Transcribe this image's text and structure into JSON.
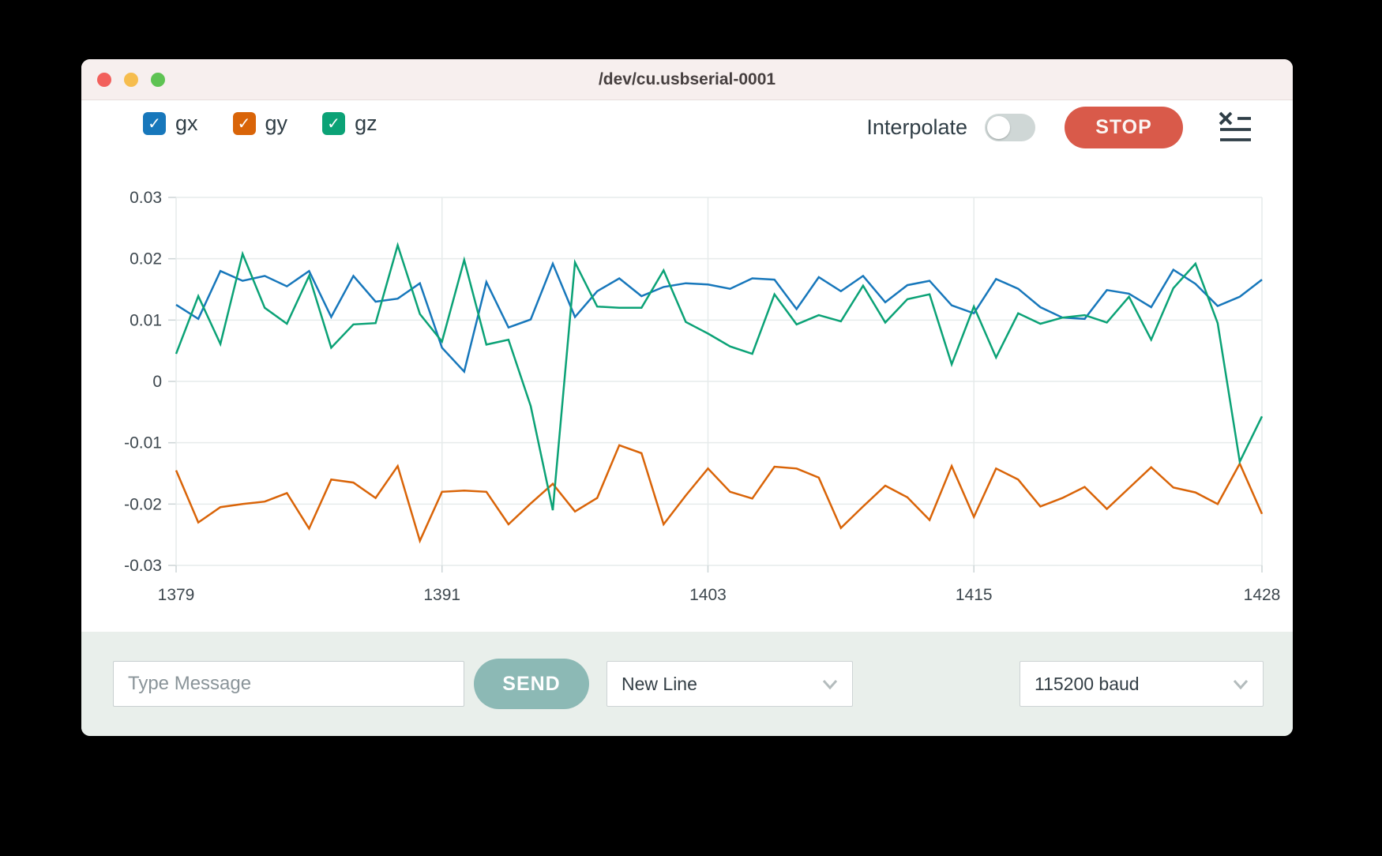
{
  "window": {
    "title": "/dev/cu.usbserial-0001"
  },
  "legend": [
    {
      "id": "gx",
      "label": "gx",
      "color": "#1777bb",
      "checked": true
    },
    {
      "id": "gy",
      "label": "gy",
      "color": "#d96408",
      "checked": true
    },
    {
      "id": "gz",
      "label": "gz",
      "color": "#0ba276",
      "checked": true
    }
  ],
  "toolbar": {
    "interpolate_label": "Interpolate",
    "interpolate_on": false,
    "stop_label": "STOP",
    "clear_icon": "clear-list-icon"
  },
  "chart_data": {
    "type": "line",
    "x": [
      1379,
      1380,
      1381,
      1382,
      1383,
      1384,
      1385,
      1386,
      1387,
      1388,
      1389,
      1390,
      1391,
      1392,
      1393,
      1394,
      1395,
      1396,
      1397,
      1398,
      1399,
      1400,
      1401,
      1402,
      1403,
      1404,
      1405,
      1406,
      1407,
      1408,
      1409,
      1410,
      1411,
      1412,
      1413,
      1414,
      1415,
      1416,
      1417,
      1418,
      1419,
      1420,
      1421,
      1422,
      1423,
      1424,
      1425,
      1426,
      1427,
      1428
    ],
    "series": [
      {
        "name": "gx",
        "color": "#1777bb",
        "values": [
          0.0125,
          0.0102,
          0.018,
          0.0164,
          0.0172,
          0.0155,
          0.018,
          0.0105,
          0.0172,
          0.013,
          0.0135,
          0.016,
          0.0055,
          0.0016,
          0.0162,
          0.0088,
          0.0101,
          0.0192,
          0.0105,
          0.0147,
          0.0168,
          0.0139,
          0.0154,
          0.016,
          0.0158,
          0.0151,
          0.0168,
          0.0166,
          0.0118,
          0.017,
          0.0147,
          0.0172,
          0.0129,
          0.0157,
          0.0164,
          0.0124,
          0.0111,
          0.0167,
          0.0151,
          0.0121,
          0.0104,
          0.0102,
          0.0149,
          0.0143,
          0.0121,
          0.0182,
          0.0159,
          0.0123,
          0.0138,
          0.0166
        ]
      },
      {
        "name": "gy",
        "color": "#d96408",
        "values": [
          -0.0145,
          -0.023,
          -0.0205,
          -0.02,
          -0.0196,
          -0.0182,
          -0.024,
          -0.016,
          -0.0165,
          -0.019,
          -0.0138,
          -0.026,
          -0.018,
          -0.0178,
          -0.018,
          -0.0233,
          -0.0199,
          -0.0167,
          -0.0212,
          -0.019,
          -0.0104,
          -0.0117,
          -0.0233,
          -0.0186,
          -0.0142,
          -0.018,
          -0.0191,
          -0.0139,
          -0.0142,
          -0.0157,
          -0.0239,
          -0.0204,
          -0.017,
          -0.0189,
          -0.0226,
          -0.0138,
          -0.0221,
          -0.0142,
          -0.016,
          -0.0204,
          -0.019,
          -0.0172,
          -0.0208,
          -0.0174,
          -0.014,
          -0.0173,
          -0.0181,
          -0.02,
          -0.0134,
          -0.0216
        ]
      },
      {
        "name": "gz",
        "color": "#0ba276",
        "values": [
          0.0045,
          0.0139,
          0.0061,
          0.0208,
          0.012,
          0.0094,
          0.0172,
          0.0055,
          0.0093,
          0.0095,
          0.0222,
          0.011,
          0.0065,
          0.0198,
          0.006,
          0.0068,
          -0.004,
          -0.021,
          0.0194,
          0.0122,
          0.012,
          0.012,
          0.0181,
          0.0097,
          0.0078,
          0.0057,
          0.0045,
          0.0142,
          0.0093,
          0.0108,
          0.0098,
          0.0156,
          0.0096,
          0.0134,
          0.0142,
          0.0028,
          0.0122,
          0.0039,
          0.0111,
          0.0094,
          0.0104,
          0.0108,
          0.0096,
          0.0138,
          0.0068,
          0.0152,
          0.0192,
          0.0095,
          -0.0131,
          -0.0057
        ]
      }
    ],
    "title": "",
    "xlabel": "",
    "ylabel": "",
    "xticks": [
      1379,
      1391,
      1403,
      1415,
      1428
    ],
    "yticks": [
      0.03,
      0.02,
      0.01,
      0,
      -0.01,
      -0.02,
      -0.03
    ],
    "ylim": [
      -0.03,
      0.03
    ],
    "xlim": [
      1379,
      1428
    ],
    "grid": true,
    "legend_position": "top-left"
  },
  "footer": {
    "message_placeholder": "Type Message",
    "send_label": "SEND",
    "line_ending": "New Line",
    "baud": "115200 baud"
  },
  "colors": {
    "stop_button": "#d95a4a",
    "send_button": "#8cb9b5",
    "titlebar_bg": "#f7efee",
    "bottombar_bg": "#e9efeb",
    "gridline": "#e6ebeb"
  }
}
